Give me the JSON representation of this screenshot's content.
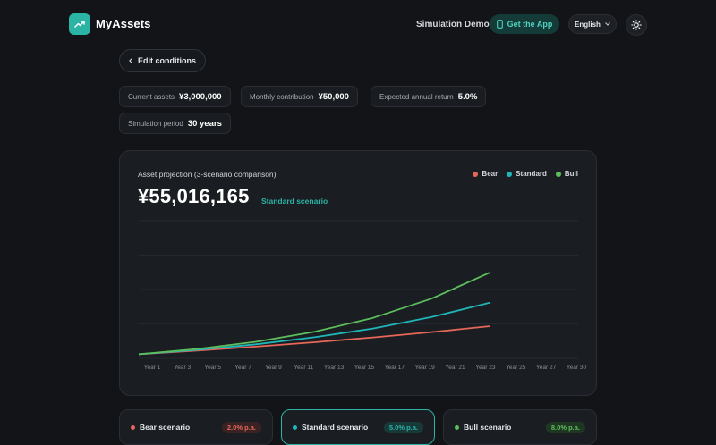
{
  "app": {
    "name": "MyAssets",
    "nav_demo": "Simulation Demo",
    "get_app": "Get the App",
    "language": "English"
  },
  "edit_button": "Edit conditions",
  "conditions": [
    {
      "key": "Current assets",
      "value": "¥3,000,000"
    },
    {
      "key": "Monthly contribution",
      "value": "¥50,000"
    },
    {
      "key": "Expected annual return",
      "value": "5.0%"
    },
    {
      "key": "Simulation period",
      "value": "30 years"
    }
  ],
  "projection": {
    "title": "Asset projection (3-scenario comparison)",
    "value": "¥55,016,165",
    "scenario_label": "Standard scenario"
  },
  "colors": {
    "bear": "#e5675a",
    "standard": "#1fb6b9",
    "bull": "#5cbf5c",
    "accent": "#2bb3a6"
  },
  "chart_data": {
    "type": "line",
    "title": "Asset projection (3-scenario comparison)",
    "x_tick_labels": [
      "Year 1",
      "Year 3",
      "Year 5",
      "Year 7",
      "Year 9",
      "Year 11",
      "Year 13",
      "Year 15",
      "Year 17",
      "Year 19",
      "Year 21",
      "Year 23",
      "Year 25",
      "Year 27",
      "Year 30"
    ],
    "x_range": [
      0,
      30
    ],
    "ylim": [
      0,
      100000000
    ],
    "grid": true,
    "legend": "top-right",
    "series": [
      {
        "name": "Bear",
        "x": [
          0,
          4,
          8,
          12,
          16,
          20,
          24
        ],
        "y": [
          3000000,
          5600000,
          8500000,
          11700000,
          15200000,
          19100000,
          23400000
        ]
      },
      {
        "name": "Standard",
        "x": [
          0,
          4,
          8,
          12,
          16,
          20,
          24
        ],
        "y": [
          3000000,
          6200000,
          10200000,
          15300000,
          21700000,
          30000000,
          40500000
        ]
      },
      {
        "name": "Bull",
        "x": [
          0,
          4,
          8,
          12,
          16,
          20,
          24
        ],
        "y": [
          3000000,
          6800000,
          12000000,
          19300000,
          29400000,
          43400000,
          62500000
        ]
      }
    ]
  },
  "scenarios": [
    {
      "name": "Bear scenario",
      "rate": "2.0% p.a."
    },
    {
      "name": "Standard scenario",
      "rate": "5.0% p.a."
    },
    {
      "name": "Bull scenario",
      "rate": "8.0% p.a."
    }
  ]
}
